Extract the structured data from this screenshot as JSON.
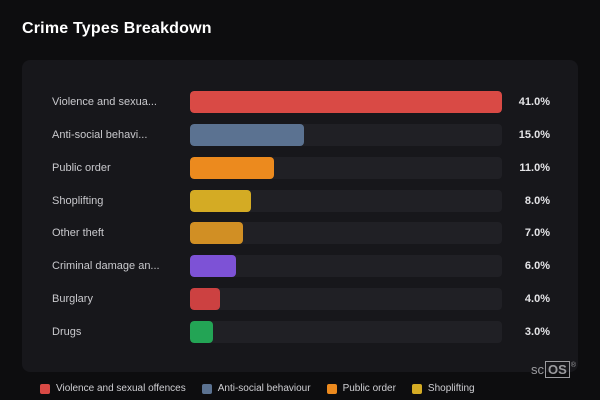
{
  "page": {
    "title": "Crime Types Breakdown",
    "background": "#0d0d0f",
    "card_background": "#17171b",
    "track_color": "#202025"
  },
  "watermark": {
    "prefix": "sc",
    "boxed": "OS",
    "reg": "®"
  },
  "chart_data": {
    "type": "bar",
    "orientation": "horizontal",
    "title": "Crime Types Breakdown",
    "categories": [
      "Violence and sexua...",
      "Anti-social behavi...",
      "Public order",
      "Shoplifting",
      "Other theft",
      "Criminal damage an...",
      "Burglary",
      "Drugs"
    ],
    "values": [
      41.0,
      15.0,
      11.0,
      8.0,
      7.0,
      6.0,
      4.0,
      3.0
    ],
    "value_labels": [
      "41.0%",
      "15.0%",
      "11.0%",
      "8.0%",
      "7.0%",
      "6.0%",
      "4.0%",
      "3.0%"
    ],
    "colors": [
      "#d94a45",
      "#5b7291",
      "#ec8a1e",
      "#d4ab24",
      "#d18f24",
      "#7d52d6",
      "#cc4141",
      "#23a455"
    ],
    "xlim": [
      0,
      41
    ],
    "grid": false,
    "legend_position": "bottom",
    "legend": [
      {
        "label": "Violence and sexual offences",
        "color": "#d94a45"
      },
      {
        "label": "Anti-social behaviour",
        "color": "#5b7291"
      },
      {
        "label": "Public order",
        "color": "#ec8a1e"
      },
      {
        "label": "Shoplifting",
        "color": "#d4ab24"
      }
    ]
  }
}
